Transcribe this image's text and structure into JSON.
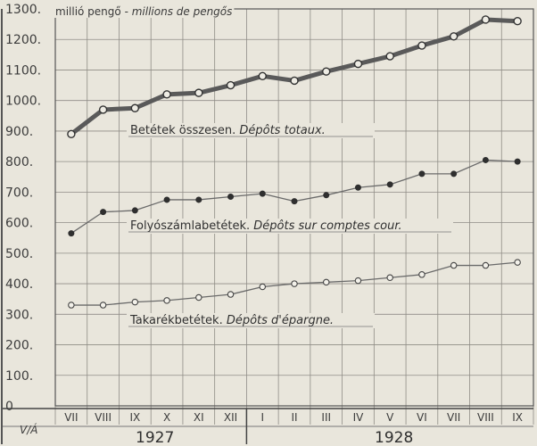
{
  "chart_data": {
    "type": "line",
    "unit_label_hu": "millió pengő",
    "unit_label_fr": "millions de pengős",
    "yticks": [
      "1300.",
      "1200.",
      "1100.",
      "1000.",
      "900.",
      "800.",
      "700.",
      "600.",
      "500.",
      "400.",
      "300.",
      "200.",
      "100.",
      "0"
    ],
    "ylim": [
      0,
      1300
    ],
    "corner_label": "V/Á",
    "categories": [
      "VII",
      "VIII",
      "IX",
      "X",
      "XI",
      "XII",
      "I",
      "II",
      "III",
      "IV",
      "V",
      "VI",
      "VII",
      "VIII",
      "IX"
    ],
    "years": [
      "1927",
      "1928"
    ],
    "grid": true,
    "series": [
      {
        "name": "Betétek összesen.",
        "name_fr": "Dépôts totaux.",
        "values": [
          890,
          970,
          975,
          1020,
          1025,
          1050,
          1080,
          1065,
          1095,
          1120,
          1145,
          1180,
          1210,
          1265,
          1260
        ],
        "style": "thick"
      },
      {
        "name": "Folyószámlabetétek.",
        "name_fr": "Dépôts sur comptes cour.",
        "values": [
          565,
          635,
          640,
          675,
          675,
          685,
          695,
          670,
          690,
          715,
          725,
          760,
          760,
          805,
          800
        ],
        "style": "thin"
      },
      {
        "name": "Takarékbetétek.",
        "name_fr": "Dépôts d'épargne.",
        "values": [
          330,
          330,
          340,
          345,
          355,
          365,
          390,
          400,
          405,
          410,
          420,
          430,
          460,
          460,
          470
        ],
        "style": "thin"
      }
    ]
  }
}
